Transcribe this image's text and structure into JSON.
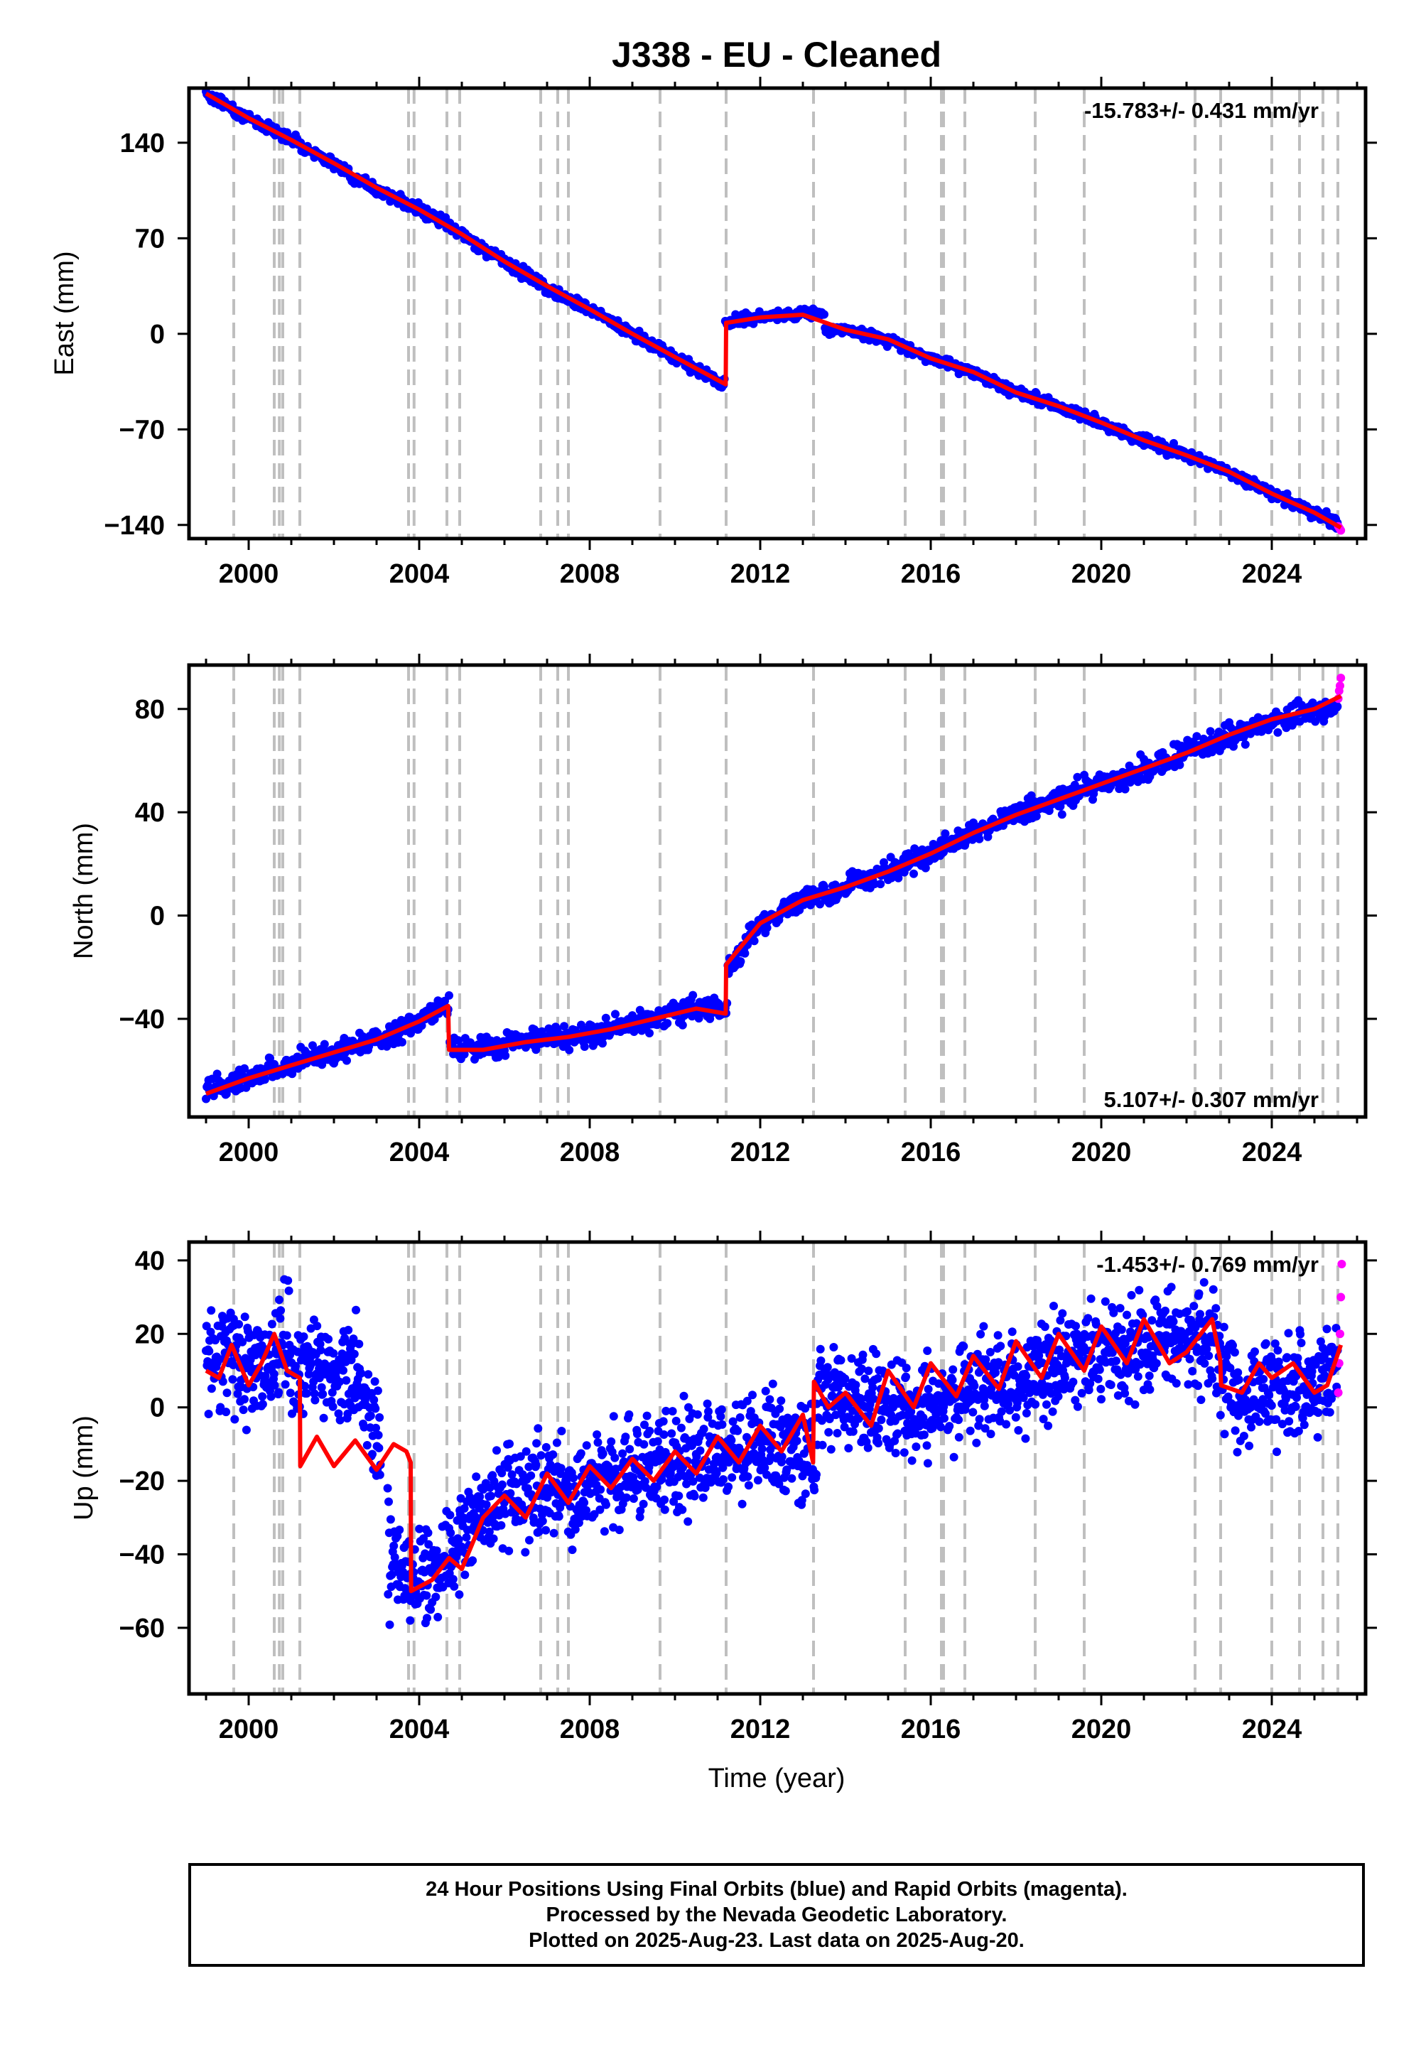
{
  "title": "J338  - EU - Cleaned",
  "xlabel": "Time (year)",
  "footer": {
    "line1": "24 Hour Positions Using Final Orbits (blue) and Rapid Orbits (magenta).",
    "line2": "Processed by the Nevada Geodetic Laboratory.",
    "line3": "Plotted on 2025-Aug-23. Last data on 2025-Aug-20."
  },
  "colors": {
    "final_orbits": "#0000ff",
    "rapid_orbits": "#ff00ff",
    "model_fit": "#ff0000",
    "equipment_change_lines": "#bfbfbf"
  },
  "chart_data": [
    {
      "type": "scatter",
      "panel": "east",
      "ylabel": "East (mm)",
      "rate_label": "-15.783+/- 0.431 mm/yr",
      "rate_position": "top-right",
      "xlim": [
        1998.6,
        2026.2
      ],
      "ylim": [
        -150,
        180
      ],
      "xticks": [
        2000,
        2004,
        2008,
        2012,
        2016,
        2020,
        2024
      ],
      "yticks": [
        140,
        70,
        0,
        -70,
        -140
      ],
      "grid": false,
      "vlines": [
        1999.65,
        2000.6,
        2000.72,
        2000.8,
        2001.2,
        2003.75,
        2003.88,
        2004.65,
        2004.95,
        2006.85,
        2007.25,
        2007.5,
        2009.65,
        2011.2,
        2013.25,
        2015.4,
        2016.25,
        2016.3,
        2016.8,
        2018.45,
        2019.6,
        2022.2,
        2022.8,
        2024.0,
        2024.65,
        2025.2,
        2025.55
      ],
      "breaks": [
        2011.19,
        2013.25
      ],
      "series": [
        {
          "role": "final_orbits",
          "x": [
            1999.0,
            2000.0,
            2001.0,
            2002.0,
            2003.0,
            2004.0,
            2005.0,
            2006.0,
            2007.0,
            2008.0,
            2009.0,
            2010.0,
            2011.1,
            2011.25,
            2012.0,
            2013.0,
            2014.0,
            2015.0,
            2016.0,
            2017.0,
            2018.0,
            2019.0,
            2020.0,
            2021.0,
            2022.0,
            2023.0,
            2024.0,
            2025.0,
            2025.55
          ],
          "y": [
            176,
            158,
            143,
            124,
            106,
            91,
            73,
            53,
            34,
            18,
            0,
            -17,
            -37,
            8,
            12,
            15,
            3,
            -4,
            -18,
            -28,
            -43,
            -53,
            -66,
            -78,
            -89,
            -101,
            -117,
            -131,
            -139
          ]
        },
        {
          "role": "rapid_orbits",
          "x": [
            2025.56,
            2025.58,
            2025.6,
            2025.62
          ],
          "y": [
            -141,
            -142,
            -143,
            -144
          ]
        },
        {
          "role": "model_fit",
          "x": [
            1999.0,
            2000.0,
            2001.0,
            2002.0,
            2003.0,
            2004.0,
            2005.0,
            2006.0,
            2007.0,
            2008.0,
            2009.0,
            2010.0,
            2011.19,
            2011.2,
            2012.0,
            2013.0,
            2014.0,
            2015.0,
            2016.0,
            2017.0,
            2018.0,
            2019.0,
            2020.0,
            2021.0,
            2022.0,
            2023.0,
            2024.0,
            2025.0,
            2025.62
          ],
          "y": [
            176,
            158,
            142,
            125,
            107,
            91,
            73,
            53,
            35,
            18,
            0,
            -17,
            -37,
            8,
            12,
            14,
            3,
            -4,
            -18,
            -28,
            -43,
            -53,
            -65,
            -78,
            -89,
            -101,
            -117,
            -131,
            -142
          ]
        }
      ]
    },
    {
      "type": "scatter",
      "panel": "north",
      "ylabel": "North (mm)",
      "rate_label": "5.107+/- 0.307 mm/yr",
      "rate_position": "bottom-right",
      "xlim": [
        1998.6,
        2026.2
      ],
      "ylim": [
        -78,
        97
      ],
      "xticks": [
        2000,
        2004,
        2008,
        2012,
        2016,
        2020,
        2024
      ],
      "yticks": [
        80,
        40,
        0,
        -40
      ],
      "grid": false,
      "vlines": [
        1999.65,
        2000.6,
        2000.72,
        2000.8,
        2001.2,
        2003.75,
        2003.88,
        2004.65,
        2004.95,
        2006.85,
        2007.25,
        2007.5,
        2009.65,
        2011.2,
        2013.25,
        2015.4,
        2016.25,
        2016.3,
        2016.8,
        2018.45,
        2019.6,
        2022.2,
        2022.8,
        2024.0,
        2024.65,
        2025.2,
        2025.55
      ],
      "breaks": [
        2004.7,
        2011.19
      ],
      "series": [
        {
          "role": "final_orbits",
          "x": [
            1999.0,
            2000.0,
            2001.0,
            2002.0,
            2003.0,
            2004.0,
            2004.65,
            2004.75,
            2005.5,
            2006.5,
            2007.5,
            2008.5,
            2009.5,
            2010.5,
            2011.15,
            2011.3,
            2012.0,
            2013.0,
            2014.0,
            2015.0,
            2016.0,
            2017.0,
            2018.0,
            2019.0,
            2020.0,
            2021.0,
            2022.0,
            2023.0,
            2024.0,
            2025.0,
            2025.55
          ],
          "y": [
            -68,
            -63,
            -57,
            -53,
            -48,
            -41,
            -35,
            -50,
            -52,
            -49,
            -47,
            -44,
            -40,
            -35,
            -37,
            -20,
            -3,
            6,
            11,
            17,
            24,
            32,
            39,
            45,
            51,
            57,
            63,
            70,
            75,
            79,
            81
          ]
        },
        {
          "role": "rapid_orbits",
          "x": [
            2025.56,
            2025.58,
            2025.6,
            2025.62
          ],
          "y": [
            84,
            87,
            89,
            92
          ]
        },
        {
          "role": "model_fit",
          "x": [
            1999.0,
            2000.0,
            2001.0,
            2002.0,
            2003.0,
            2004.0,
            2004.68,
            2004.7,
            2005.5,
            2006.5,
            2007.5,
            2008.5,
            2009.5,
            2010.5,
            2011.19,
            2011.2,
            2012.0,
            2013.0,
            2014.0,
            2015.0,
            2016.0,
            2017.0,
            2018.0,
            2019.0,
            2020.0,
            2021.0,
            2022.0,
            2023.0,
            2024.0,
            2025.0,
            2025.62
          ],
          "y": [
            -69,
            -63,
            -58,
            -53,
            -48,
            -41,
            -35,
            -52,
            -52,
            -49,
            -47,
            -44,
            -40,
            -36,
            -38,
            -19,
            -3,
            6,
            11,
            17,
            24,
            32,
            39,
            45,
            51,
            57,
            63,
            70,
            76,
            80,
            85
          ]
        }
      ]
    },
    {
      "type": "scatter",
      "panel": "up",
      "ylabel": "Up (mm)",
      "rate_label": "-1.453+/- 0.769 mm/yr",
      "rate_position": "top-right",
      "xlim": [
        1998.6,
        2026.2
      ],
      "ylim": [
        -78,
        45
      ],
      "xticks": [
        2000,
        2004,
        2008,
        2012,
        2016,
        2020,
        2024
      ],
      "yticks": [
        40,
        20,
        0,
        -20,
        -40,
        -60
      ],
      "grid": false,
      "vlines": [
        1999.65,
        2000.6,
        2000.72,
        2000.8,
        2001.2,
        2003.75,
        2003.88,
        2004.65,
        2004.95,
        2006.85,
        2007.25,
        2007.5,
        2009.65,
        2011.2,
        2013.25,
        2015.4,
        2016.25,
        2016.3,
        2016.8,
        2018.45,
        2019.6,
        2022.2,
        2022.8,
        2024.0,
        2024.65,
        2025.2,
        2025.55
      ],
      "breaks": [
        2001.2,
        2003.8,
        2013.25,
        2022.8
      ],
      "series": [
        {
          "role": "final_orbits",
          "x": [
            1999.0,
            1999.5,
            2000.0,
            2000.7,
            2001.2,
            2001.5,
            2002.0,
            2002.5,
            2003.0,
            2003.3,
            2003.8,
            2004.2,
            2004.8,
            2005.5,
            2006.5,
            2007.5,
            2008.5,
            2009.5,
            2010.5,
            2011.5,
            2012.5,
            2013.2,
            2013.5,
            2014.5,
            2015.5,
            2016.5,
            2017.5,
            2018.5,
            2019.5,
            2020.5,
            2021.5,
            2022.5,
            2022.8,
            2023.2,
            2024.0,
            2025.0,
            2025.55
          ],
          "y": [
            12,
            16,
            9,
            18,
            8,
            12,
            9,
            10,
            -8,
            -42,
            -47,
            -45,
            -40,
            -27,
            -22,
            -24,
            -20,
            -15,
            -15,
            -10,
            -9,
            -12,
            5,
            0,
            0,
            4,
            6,
            10,
            14,
            15,
            18,
            20,
            12,
            3,
            5,
            6,
            12
          ]
        },
        {
          "role": "rapid_orbits",
          "x": [
            2025.56,
            2025.58,
            2025.6,
            2025.62,
            2025.64
          ],
          "y": [
            4,
            12,
            20,
            30,
            39
          ]
        },
        {
          "role": "model_fit",
          "x": [
            1999.0,
            1999.3,
            1999.6,
            2000.0,
            2000.3,
            2000.6,
            2000.9,
            2001.2,
            2001.21,
            2001.6,
            2002.0,
            2002.5,
            2003.0,
            2003.4,
            2003.7,
            2003.8,
            2003.81,
            2004.3,
            2004.7,
            2005.0,
            2005.5,
            2006.0,
            2006.5,
            2007.0,
            2007.5,
            2008.0,
            2008.5,
            2009.0,
            2009.5,
            2010.0,
            2010.5,
            2011.0,
            2011.5,
            2012.0,
            2012.5,
            2013.0,
            2013.24,
            2013.26,
            2013.6,
            2014.0,
            2014.6,
            2015.0,
            2015.6,
            2016.0,
            2016.6,
            2017.0,
            2017.6,
            2018.0,
            2018.6,
            2019.0,
            2019.6,
            2020.0,
            2020.6,
            2021.0,
            2021.6,
            2022.0,
            2022.6,
            2022.79,
            2022.81,
            2023.3,
            2023.7,
            2024.0,
            2024.5,
            2025.0,
            2025.3,
            2025.62
          ],
          "y": [
            10,
            8,
            17,
            6,
            12,
            20,
            10,
            8,
            -16,
            -8,
            -16,
            -9,
            -17,
            -10,
            -12,
            -15,
            -50,
            -47,
            -41,
            -44,
            -30,
            -24,
            -30,
            -18,
            -26,
            -16,
            -22,
            -14,
            -20,
            -12,
            -18,
            -8,
            -15,
            -5,
            -12,
            -2,
            -15,
            7,
            0,
            4,
            -5,
            10,
            0,
            12,
            3,
            14,
            5,
            18,
            8,
            20,
            10,
            22,
            12,
            24,
            12,
            15,
            24,
            13,
            6,
            4,
            12,
            8,
            12,
            4,
            6,
            17
          ]
        }
      ]
    }
  ]
}
